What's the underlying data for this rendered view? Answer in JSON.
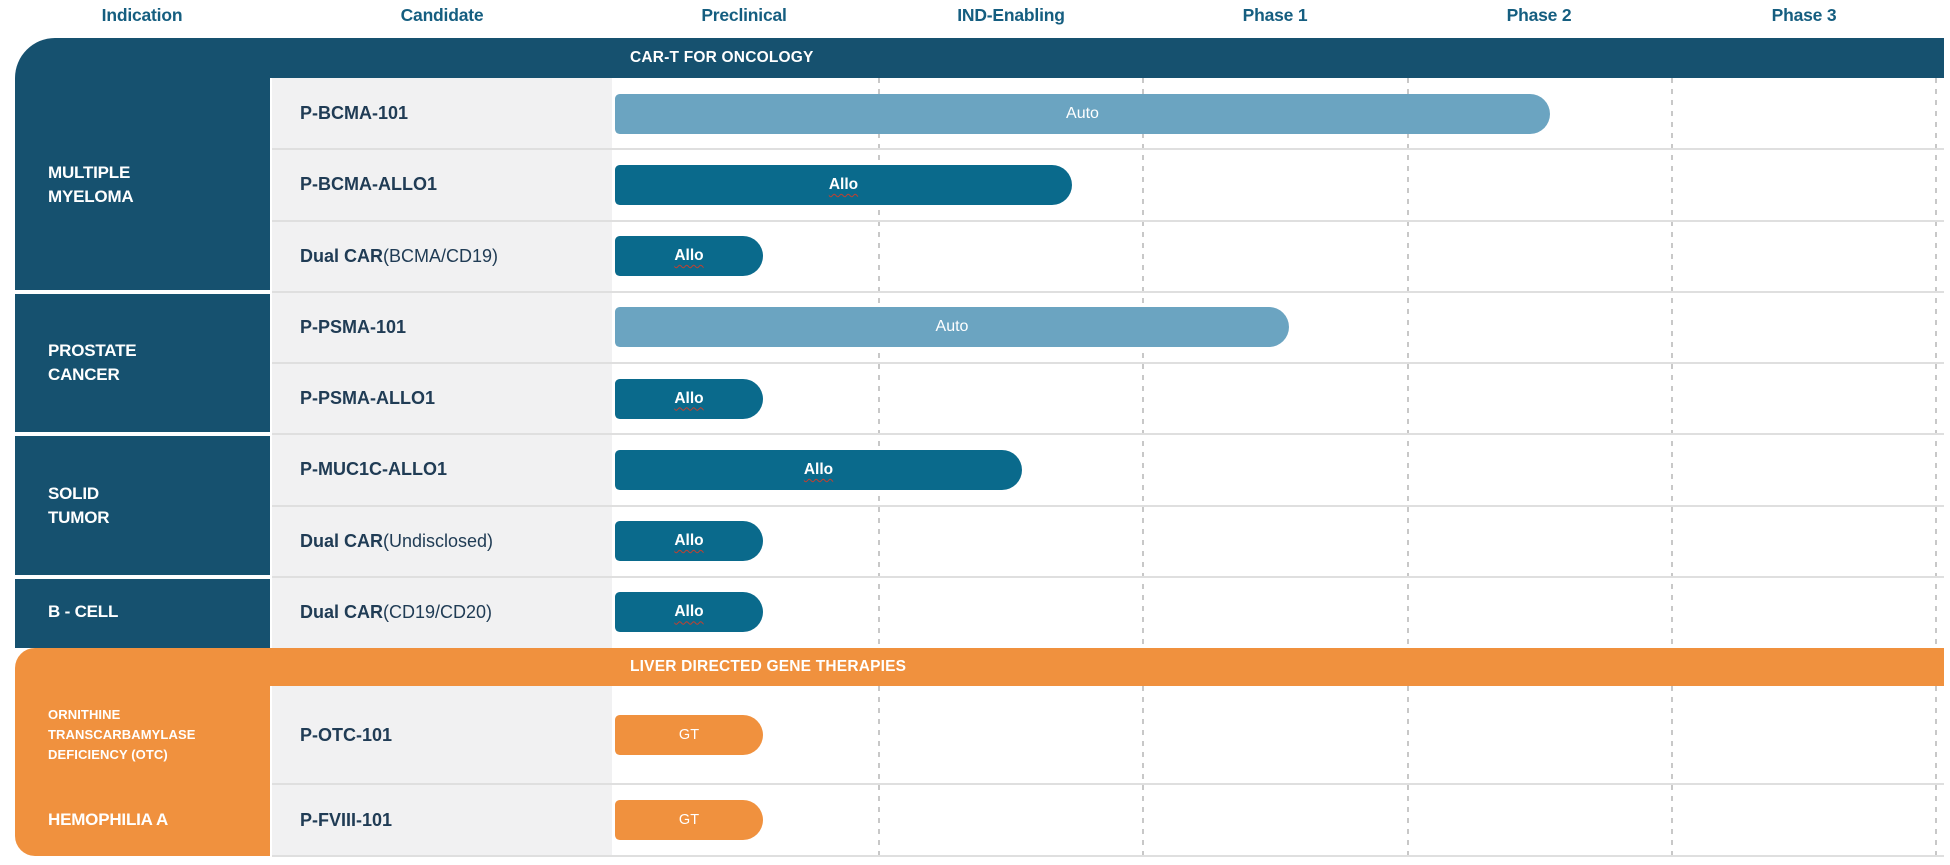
{
  "header": {
    "columns": [
      "Indication",
      "Candidate",
      "Preclinical",
      "IND-Enabling",
      "Phase 1",
      "Phase 2",
      "Phase 3"
    ]
  },
  "colors": {
    "oncology_section": "#16516f",
    "gene_therapy_section": "#f0913e",
    "allo_bar": "#0a6a8c",
    "auto_bar": "#6ba4c1",
    "gt_bar": "#f0913e",
    "header_text": "#155e80",
    "candidate_text": "#203c55",
    "squiggle_red": "#c43f2e",
    "candidate_cell_bg": "#f1f1f2"
  },
  "chart_data": {
    "type": "bar",
    "subtype": "pipeline-gantt",
    "orientation": "horizontal",
    "phase_axis": [
      "Preclinical",
      "IND-Enabling",
      "Phase 1",
      "Phase 2",
      "Phase 3"
    ],
    "units_note": "extent = how far the program bar reaches, measured in phase-column units from the start of Preclinical (1.0 = one full phase column)",
    "sections": [
      {
        "title": "CAR-T FOR ONCOLOGY",
        "accent": "#16516f",
        "groups": [
          {
            "indication": "MULTIPLE MYELOMA",
            "indication_lines": [
              "MULTIPLE",
              "MYELOMA"
            ],
            "rows": [
              {
                "candidate": "P-BCMA-101",
                "suffix": "",
                "bar_label": "Auto",
                "bar_type": "auto",
                "extent": 3.54,
                "squiggle": false
              },
              {
                "candidate": "P-BCMA-ALLO1",
                "suffix": "",
                "bar_label": "Allo",
                "bar_type": "allo",
                "extent": 1.73,
                "squiggle": true
              },
              {
                "candidate": "Dual CAR",
                "suffix": " (BCMA/CD19)",
                "bar_label": "Allo",
                "bar_type": "allo",
                "extent": 0.56,
                "squiggle": true
              }
            ]
          },
          {
            "indication": "PROSTATE CANCER",
            "indication_lines": [
              "PROSTATE",
              "CANCER"
            ],
            "rows": [
              {
                "candidate": "P-PSMA-101",
                "suffix": "",
                "bar_label": "Auto",
                "bar_type": "auto",
                "extent": 2.55,
                "squiggle": false
              },
              {
                "candidate": "P-PSMA-ALLO1",
                "suffix": "",
                "bar_label": "Allo",
                "bar_type": "allo",
                "extent": 0.56,
                "squiggle": true
              }
            ]
          },
          {
            "indication": "SOLID TUMOR",
            "indication_lines": [
              "SOLID",
              "TUMOR"
            ],
            "rows": [
              {
                "candidate": "P-MUC1C-ALLO1",
                "suffix": "",
                "bar_label": "Allo",
                "bar_type": "allo",
                "extent": 1.54,
                "squiggle": true
              },
              {
                "candidate": "Dual CAR",
                "suffix": " (Undisclosed)",
                "bar_label": "Allo",
                "bar_type": "allo",
                "extent": 0.56,
                "squiggle": true
              }
            ]
          },
          {
            "indication": "B - CELL",
            "indication_lines": [
              "B - CELL"
            ],
            "rows": [
              {
                "candidate": "Dual CAR",
                "suffix": " (CD19/CD20)",
                "bar_label": "Allo",
                "bar_type": "allo",
                "extent": 0.56,
                "squiggle": true
              }
            ]
          }
        ]
      },
      {
        "title": "LIVER DIRECTED GENE THERAPIES",
        "accent": "#f0913e",
        "groups": [
          {
            "indication": "ORNITHINE TRANSCARBAMYLASE DEFICIENCY (OTC)",
            "indication_lines": [
              "ORNITHINE",
              "TRANSCARBAMYLASE",
              "DEFICIENCY (OTC)"
            ],
            "compact": true,
            "rows": [
              {
                "candidate": "P-OTC-101",
                "suffix": "",
                "bar_label": "GT",
                "bar_type": "gt",
                "extent": 0.56,
                "squiggle": false
              }
            ]
          },
          {
            "indication": "HEMOPHILIA A",
            "indication_lines": [
              "HEMOPHILIA A"
            ],
            "rows": [
              {
                "candidate": "P-FVIII-101",
                "suffix": "",
                "bar_label": "GT",
                "bar_type": "gt",
                "extent": 0.56,
                "squiggle": false
              }
            ]
          }
        ]
      }
    ]
  }
}
